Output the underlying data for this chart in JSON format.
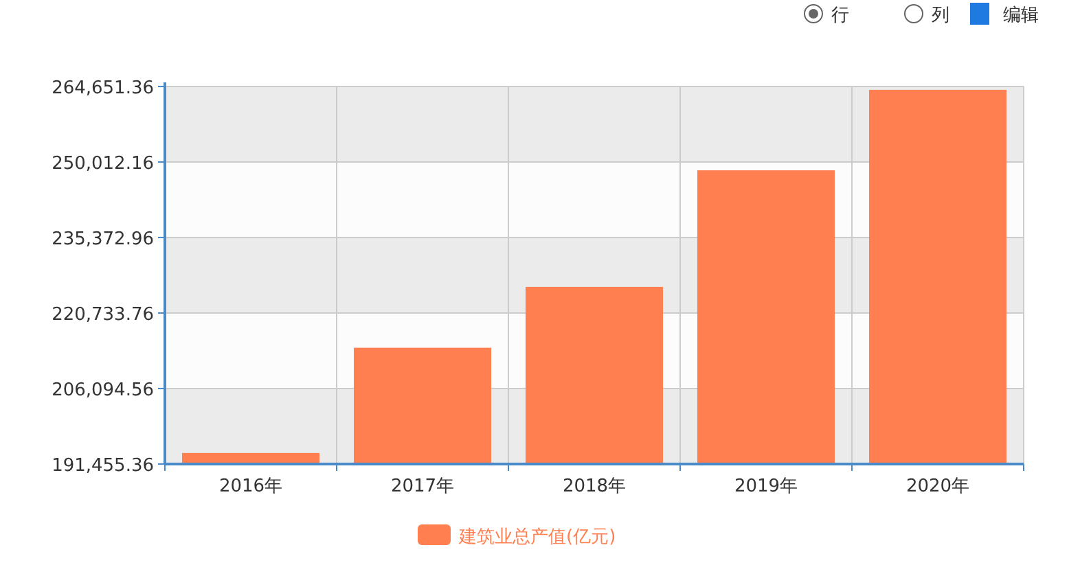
{
  "chart_data": {
    "type": "bar",
    "categories": [
      "2016年",
      "2017年",
      "2018年",
      "2019年",
      "2020年"
    ],
    "series": [
      {
        "name": "建筑业总产值(亿元)",
        "color": "#ff7f50",
        "values": [
          193600,
          214000,
          225800,
          248400,
          264000
        ]
      }
    ],
    "ylim": [
      191455.36,
      264651.36
    ],
    "yticks": [
      {
        "value": 191455.36,
        "label": "191,455.36"
      },
      {
        "value": 206094.56,
        "label": "206,094.56"
      },
      {
        "value": 220733.76,
        "label": "220,733.76"
      },
      {
        "value": 235372.96,
        "label": "235,372.96"
      },
      {
        "value": 250012.16,
        "label": "250,012.16"
      },
      {
        "value": 264651.36,
        "label": "264,651.36"
      }
    ],
    "grid": true,
    "legend": "bottom",
    "annotations": [
      "行",
      "列",
      "编辑"
    ]
  }
}
